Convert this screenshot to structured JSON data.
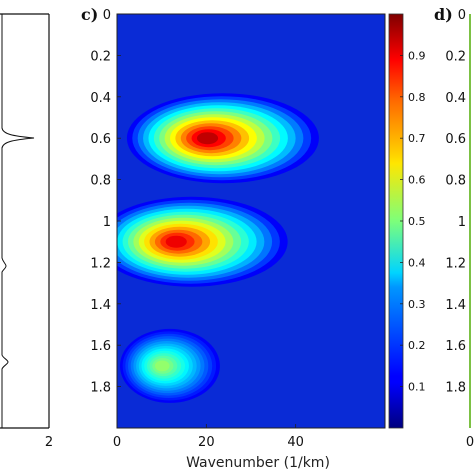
{
  "panels": {
    "c": {
      "tag": "c)"
    },
    "d": {
      "tag": "d)"
    }
  },
  "left_panel": {
    "x_ticks": [
      "2"
    ]
  },
  "right_panel": {
    "y_ticks": [
      "0",
      "0.2",
      "0.4",
      "0.6",
      "0.8",
      "1",
      "1.2",
      "1.4",
      "1.6",
      "1.8"
    ],
    "x_ticks": [
      "0"
    ],
    "frame_color": "#7cc144"
  },
  "chart_data": {
    "type": "heatmap",
    "title": "",
    "xlabel": "Wavenumber (1/km)",
    "ylabel": "",
    "xlim": [
      0,
      60
    ],
    "ylim": [
      2,
      0
    ],
    "x_ticks": [
      0,
      20,
      40
    ],
    "y_ticks": [
      0,
      0.2,
      0.4,
      0.6,
      0.8,
      1,
      1.2,
      1.4,
      1.6,
      1.8
    ],
    "colorbar": {
      "range": [
        0,
        1
      ],
      "ticks": [
        0.1,
        0.2,
        0.3,
        0.4,
        0.5,
        0.6,
        0.7,
        0.8,
        0.9
      ],
      "colormap": "jet"
    },
    "peaks": [
      {
        "wavenumber": 20,
        "depth": 0.6,
        "intensity": 1.0
      },
      {
        "wavenumber": 13,
        "depth": 1.1,
        "intensity": 0.95
      },
      {
        "wavenumber": 10,
        "depth": 1.7,
        "intensity": 0.55
      }
    ],
    "grid": false
  }
}
